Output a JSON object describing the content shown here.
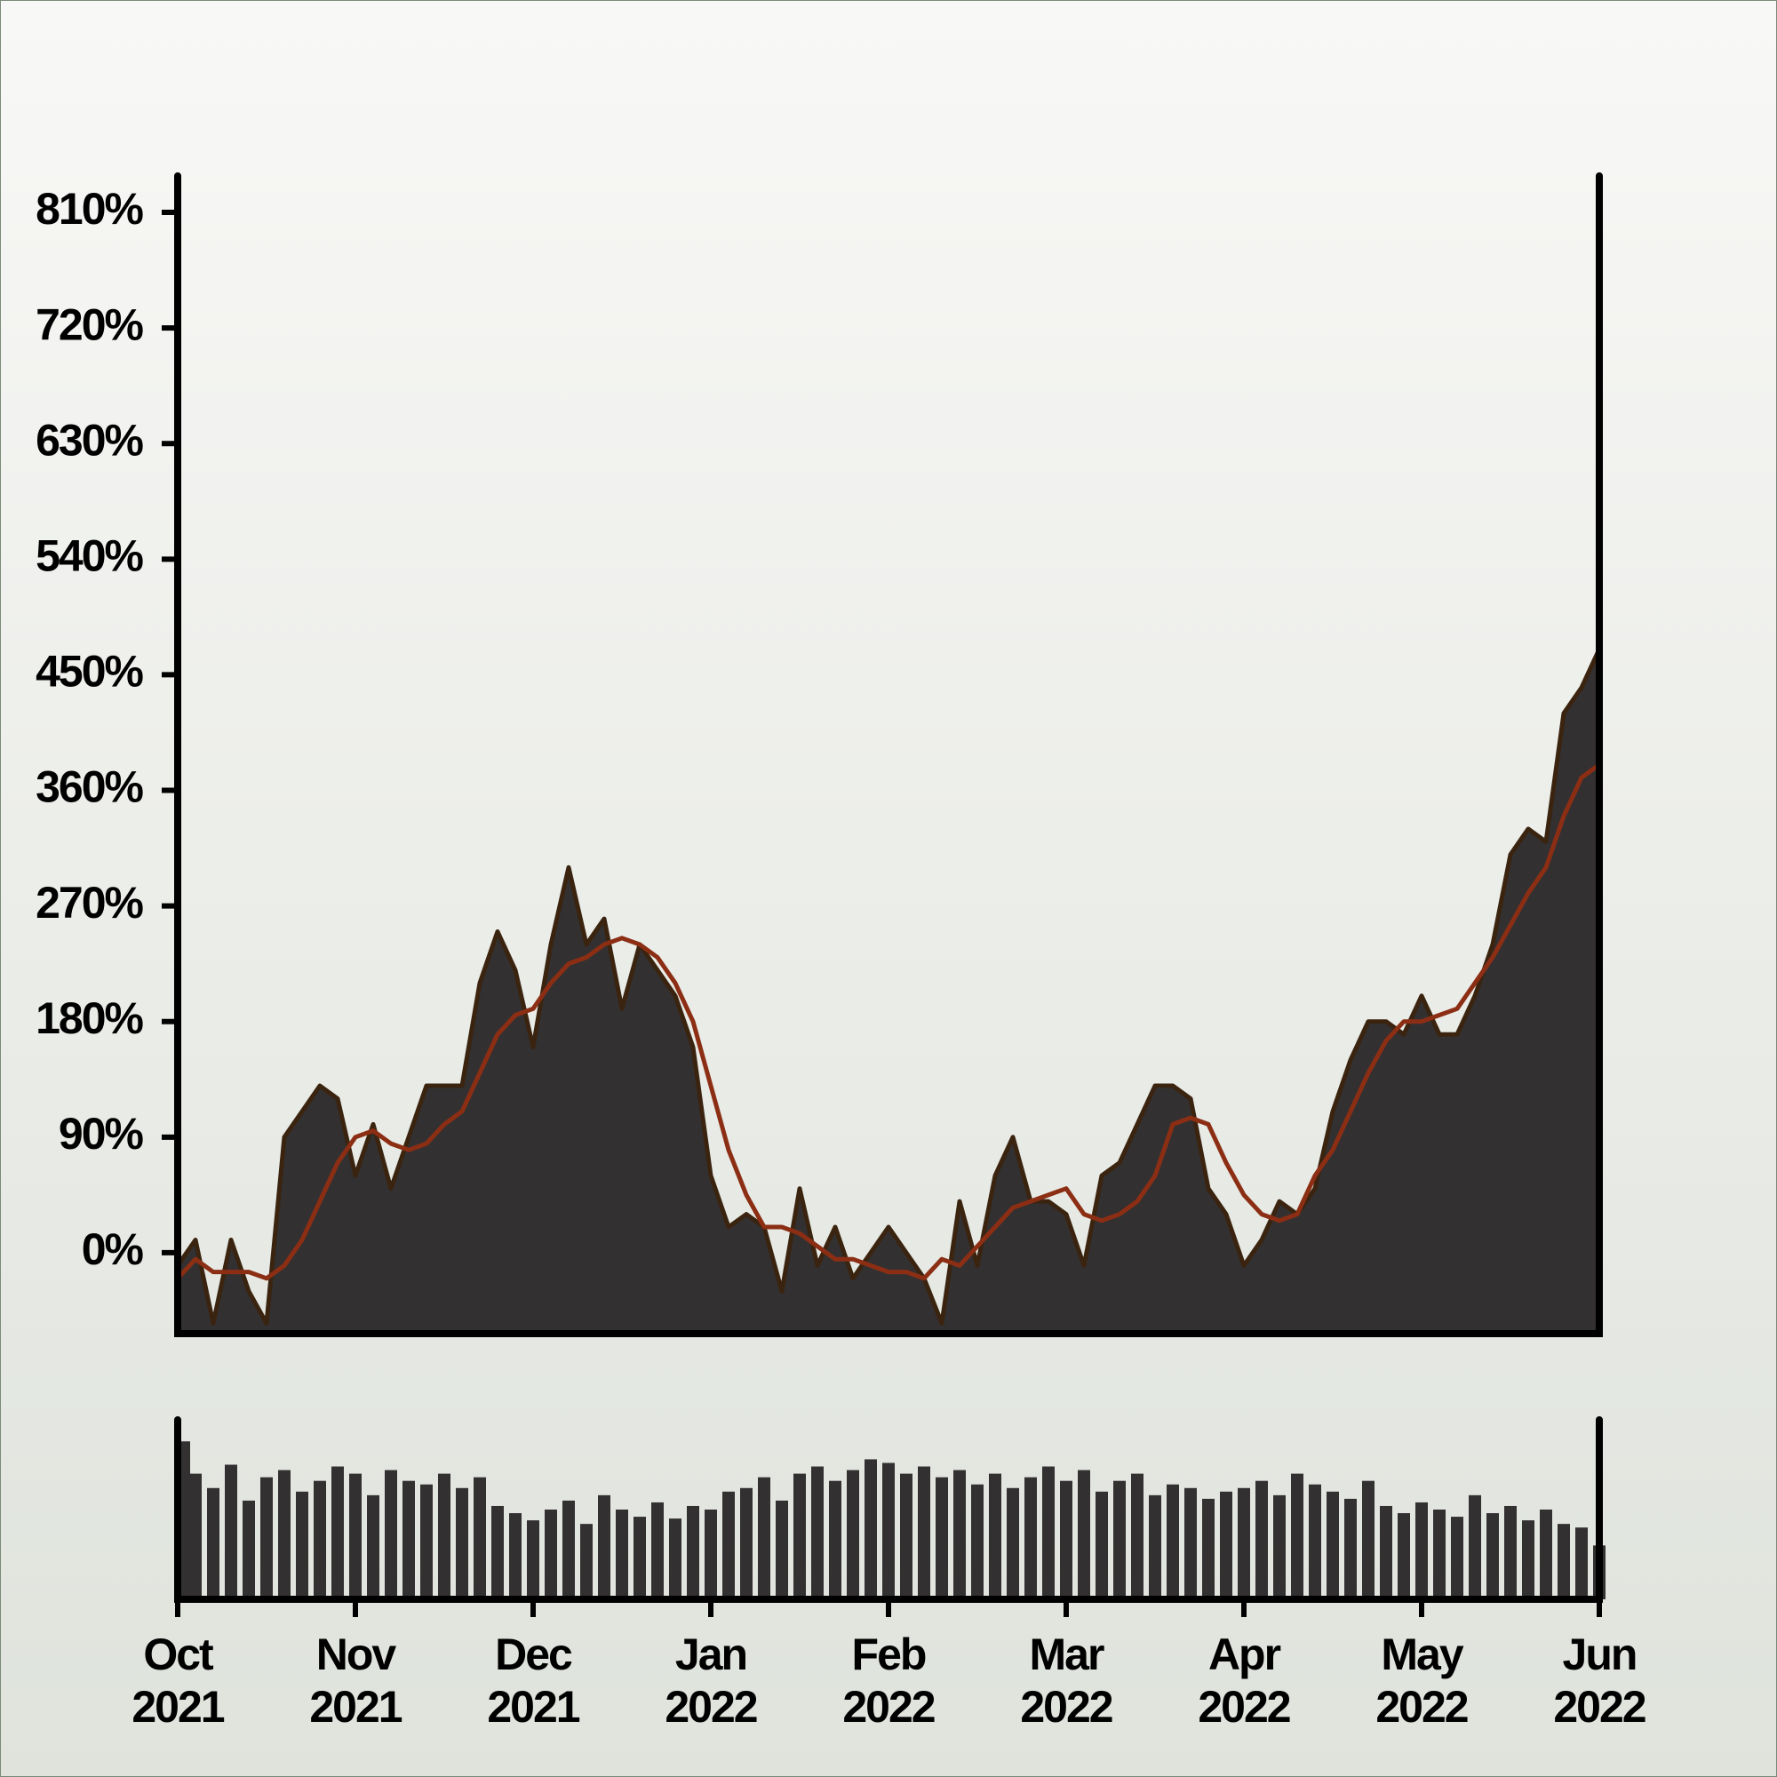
{
  "chart_data": [
    {
      "type": "area",
      "x": [
        0,
        0.1,
        0.2,
        0.3,
        0.4,
        0.5,
        0.6,
        0.7,
        0.8,
        0.9,
        1,
        1.1,
        1.2,
        1.3,
        1.4,
        1.5,
        1.6,
        1.7,
        1.8,
        1.9,
        2,
        2.1,
        2.2,
        2.3,
        2.4,
        2.5,
        2.6,
        2.7,
        2.8,
        2.9,
        3,
        3.1,
        3.2,
        3.3,
        3.4,
        3.5,
        3.6,
        3.7,
        3.8,
        3.9,
        4,
        4.1,
        4.2,
        4.3,
        4.4,
        4.5,
        4.6,
        4.7,
        4.8,
        4.9,
        5,
        5.1,
        5.2,
        5.3,
        5.4,
        5.5,
        5.6,
        5.7,
        5.8,
        5.9,
        6,
        6.1,
        6.2,
        6.3,
        6.4,
        6.5,
        6.6,
        6.7,
        6.8,
        6.9,
        7,
        7.1,
        7.2,
        7.3,
        7.4,
        7.5,
        7.6,
        7.7,
        7.8,
        7.9,
        8
      ],
      "series": [
        {
          "type": "area",
          "color": "#333031",
          "line_color": "#3a2410",
          "values": [
            -10,
            10,
            -55,
            10,
            -30,
            -55,
            90,
            110,
            130,
            120,
            60,
            100,
            50,
            90,
            130,
            130,
            130,
            210,
            250,
            220,
            160,
            240,
            300,
            240,
            260,
            190,
            240,
            220,
            200,
            160,
            60,
            20,
            30,
            20,
            -30,
            50,
            -10,
            20,
            -20,
            0,
            20,
            0,
            -20,
            -55,
            40,
            -10,
            60,
            90,
            40,
            40,
            30,
            -10,
            60,
            70,
            100,
            130,
            130,
            120,
            50,
            30,
            -10,
            10,
            40,
            30,
            50,
            110,
            150,
            180,
            180,
            170,
            200,
            170,
            170,
            200,
            240,
            310,
            330,
            320,
            420,
            440,
            470
          ]
        },
        {
          "type": "line",
          "color": "#8b2e14",
          "values": [
            -20,
            -5,
            -15,
            -15,
            -15,
            -20,
            -10,
            10,
            40,
            70,
            90,
            95,
            85,
            80,
            85,
            100,
            110,
            140,
            170,
            185,
            190,
            210,
            225,
            230,
            240,
            245,
            240,
            230,
            210,
            180,
            130,
            80,
            45,
            20,
            20,
            15,
            5,
            -5,
            -5,
            -10,
            -15,
            -15,
            -20,
            -5,
            -10,
            5,
            20,
            35,
            40,
            45,
            50,
            30,
            25,
            30,
            40,
            60,
            100,
            105,
            100,
            70,
            45,
            30,
            25,
            30,
            60,
            80,
            110,
            140,
            165,
            180,
            180,
            185,
            190,
            210,
            230,
            255,
            280,
            300,
            340,
            370,
            380
          ]
        }
      ],
      "xlim": [
        0,
        8
      ],
      "ylim": [
        -63,
        837
      ],
      "yticks": [
        {
          "value": 0,
          "label": "0%"
        },
        {
          "value": 90,
          "label": "90%"
        },
        {
          "value": 180,
          "label": "180%"
        },
        {
          "value": 270,
          "label": "270%"
        },
        {
          "value": 360,
          "label": "360%"
        },
        {
          "value": 450,
          "label": "450%"
        },
        {
          "value": 540,
          "label": "540%"
        },
        {
          "value": 630,
          "label": "630%"
        },
        {
          "value": 720,
          "label": "720%"
        },
        {
          "value": 810,
          "label": "810%"
        }
      ]
    },
    {
      "type": "bar",
      "x": [
        0,
        0.1,
        0.2,
        0.3,
        0.4,
        0.5,
        0.6,
        0.7,
        0.8,
        0.9,
        1,
        1.1,
        1.2,
        1.3,
        1.4,
        1.5,
        1.6,
        1.7,
        1.8,
        1.9,
        2,
        2.1,
        2.2,
        2.3,
        2.4,
        2.5,
        2.6,
        2.7,
        2.8,
        2.9,
        3,
        3.1,
        3.2,
        3.3,
        3.4,
        3.5,
        3.6,
        3.7,
        3.8,
        3.9,
        4,
        4.1,
        4.2,
        4.3,
        4.4,
        4.5,
        4.6,
        4.7,
        4.8,
        4.9,
        5,
        5.1,
        5.2,
        5.3,
        5.4,
        5.5,
        5.6,
        5.7,
        5.8,
        5.9,
        6,
        6.1,
        6.2,
        6.3,
        6.4,
        6.5,
        6.6,
        6.7,
        6.8,
        6.9,
        7,
        7.1,
        7.2,
        7.3,
        7.4,
        7.5,
        7.6,
        7.7,
        7.8,
        7.9,
        8
      ],
      "values": [
        88,
        70,
        62,
        75,
        55,
        68,
        72,
        60,
        66,
        74,
        70,
        58,
        72,
        66,
        64,
        70,
        62,
        68,
        52,
        48,
        44,
        50,
        55,
        42,
        58,
        50,
        46,
        54,
        45,
        52,
        50,
        60,
        62,
        68,
        55,
        70,
        74,
        66,
        72,
        78,
        76,
        70,
        74,
        68,
        72,
        64,
        70,
        62,
        68,
        74,
        66,
        72,
        60,
        66,
        70,
        58,
        64,
        62,
        56,
        60,
        62,
        66,
        58,
        70,
        64,
        60,
        56,
        66,
        52,
        48,
        54,
        50,
        46,
        58,
        48,
        52,
        44,
        50,
        42,
        40,
        30
      ],
      "color": "#333031",
      "xlim": [
        0,
        8
      ],
      "ylim": [
        0,
        100
      ],
      "xticks": [
        {
          "value": 0,
          "label": "Oct 2021"
        },
        {
          "value": 1,
          "label": "Nov 2021"
        },
        {
          "value": 2,
          "label": "Dec 2021"
        },
        {
          "value": 3,
          "label": "Jan 2022"
        },
        {
          "value": 4,
          "label": "Feb 2022"
        },
        {
          "value": 5,
          "label": "Mar 2022"
        },
        {
          "value": 6,
          "label": "Apr 2022"
        },
        {
          "value": 7,
          "label": "May 2022"
        },
        {
          "value": 8,
          "label": "Jun 2022"
        }
      ]
    }
  ]
}
